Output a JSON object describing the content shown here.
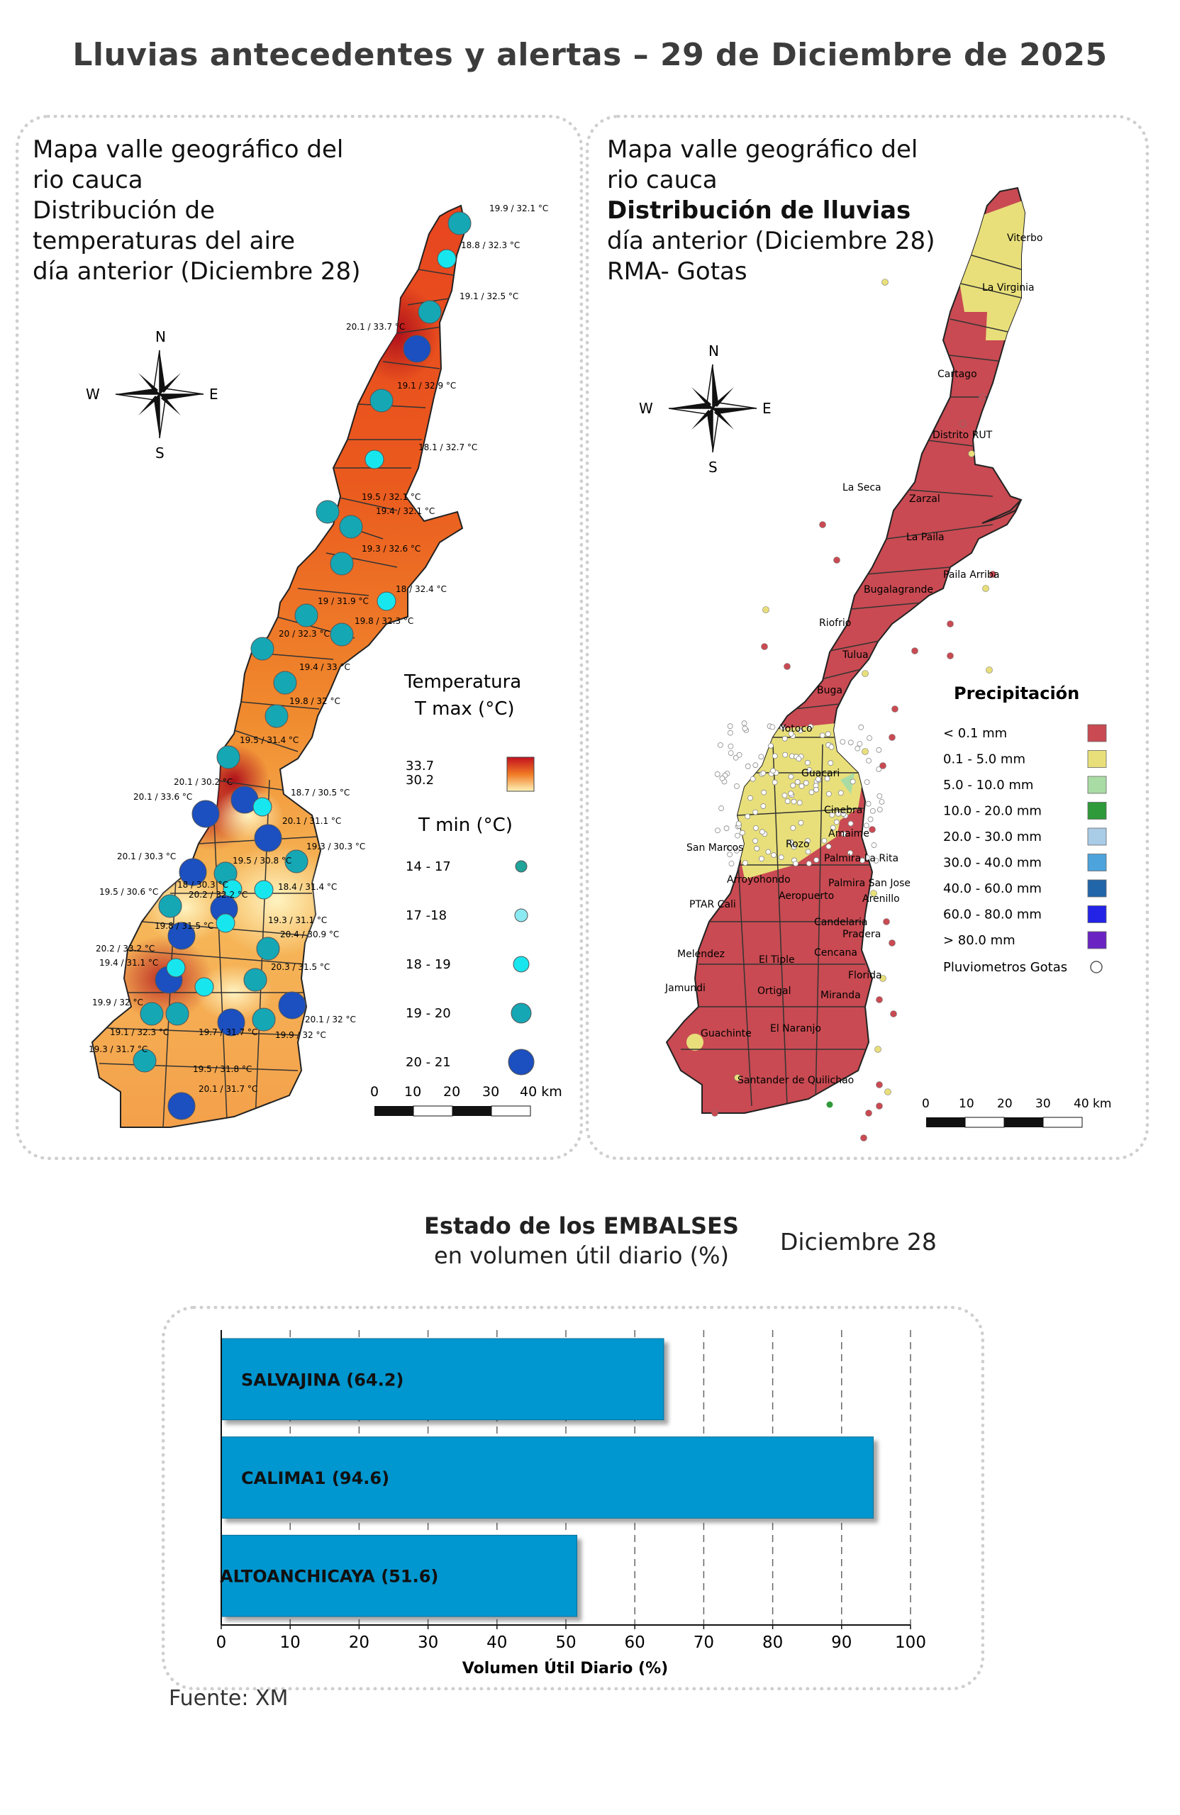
{
  "title": "Lluvias antecedentes y alertas – 29 de Diciembre de 2025",
  "left_panel": {
    "heading_lines": [
      "Mapa valle geográfico del",
      "rio cauca",
      "Distribución de",
      "temperaturas del aire",
      "día anterior (Diciembre 28)"
    ],
    "compass": {
      "n": "N",
      "s": "S",
      "e": "E",
      "w": "W"
    },
    "legend": {
      "title_line1": "Temperatura",
      "title_line2": "T max (°C)",
      "max_value": "33.7",
      "min_value": "30.2",
      "tmin_title": "T min (°C)",
      "tmin_classes": [
        {
          "label": "14 - 17",
          "color": "#1fa39a"
        },
        {
          "label": "17 -18",
          "color": "#8be9f2"
        },
        {
          "label": "18 - 19",
          "color": "#18e6ee"
        },
        {
          "label": "19 - 20",
          "color": "#16a7b5"
        },
        {
          "label": "20 - 21",
          "color": "#1c4fbf"
        }
      ]
    },
    "scale": {
      "ticks": [
        "0",
        "10",
        "20",
        "30",
        "40 km"
      ]
    },
    "station_labels": [
      {
        "text": "19.9 / 32.1 °C"
      },
      {
        "text": "18.8 / 32.3 °C"
      },
      {
        "text": "19.1 / 32.5 °C"
      },
      {
        "text": "20.1 / 33.7 °C"
      },
      {
        "text": "19.1 / 32.9 °C"
      },
      {
        "text": "18.1 / 32.7 °C"
      },
      {
        "text": "19.5 / 32.1 °C"
      },
      {
        "text": "19.4 / 32.1 °C"
      },
      {
        "text": "19.3 / 32.6 °C"
      },
      {
        "text": "18 / 32.4 °C"
      },
      {
        "text": "19 / 31.9 °C"
      },
      {
        "text": "19.8 / 32.3 °C"
      },
      {
        "text": "20 / 32.3 °C"
      },
      {
        "text": "19.4 / 33 °C"
      },
      {
        "text": "19.8 / 32 °C"
      },
      {
        "text": "19.5 / 31.4 °C"
      },
      {
        "text": "20.1 / 30.2 °C"
      },
      {
        "text": "20.1 / 33.6 °C"
      },
      {
        "text": "18.7 / 30.5 °C"
      },
      {
        "text": "20.1 / 31.1 °C"
      },
      {
        "text": "19.3 / 30.3 °C"
      },
      {
        "text": "20.1 / 30.3 °C"
      },
      {
        "text": "19.5 / 30.8 °C"
      },
      {
        "text": "18 / 30.3 °C"
      },
      {
        "text": "18.4 / 31.4 °C"
      },
      {
        "text": "19.5 / 30.6 °C"
      },
      {
        "text": "20.2 / 32.2 °C"
      },
      {
        "text": "19.8 / 31.5 °C"
      },
      {
        "text": "19.3 / 31.1 °C"
      },
      {
        "text": "20.4 / 30.9 °C"
      },
      {
        "text": "20.2 / 33.2 °C"
      },
      {
        "text": "19.4 / 31.1 °C"
      },
      {
        "text": "20.3 / 31.5 °C"
      },
      {
        "text": "19.9 / 32 °C"
      },
      {
        "text": "20.1 / 32 °C"
      },
      {
        "text": "19.1 / 32.3 °C"
      },
      {
        "text": "19.7 / 31.7 °C"
      },
      {
        "text": "19.9 / 32 °C"
      },
      {
        "text": "19.3 / 31.7 °C"
      },
      {
        "text": "19.5 / 31.8 °C"
      },
      {
        "text": "20.1 / 31.7 °C"
      }
    ]
  },
  "right_panel": {
    "heading_line1": "Mapa valle geográfico del",
    "heading_line2": "rio cauca",
    "heading_bold": "Distribución de lluvias",
    "heading_line4": "día anterior (Diciembre 28)",
    "heading_line5": "RMA- Gotas",
    "compass": {
      "n": "N",
      "s": "S",
      "e": "E",
      "w": "W"
    },
    "legend": {
      "title": "Precipitación",
      "classes": [
        {
          "label": "< 0.1 mm",
          "color": "#c94a52"
        },
        {
          "label": "0.1 - 5.0 mm",
          "color": "#e8df7a"
        },
        {
          "label": "5.0 - 10.0 mm",
          "color": "#a9dca4"
        },
        {
          "label": "10.0 - 20.0 mm",
          "color": "#2f9a3a"
        },
        {
          "label": "20.0 - 30.0 mm",
          "color": "#a9cce7"
        },
        {
          "label": "30.0 - 40.0 mm",
          "color": "#4da3dc"
        },
        {
          "label": "40.0 - 60.0 mm",
          "color": "#2266aa"
        },
        {
          "label": "60.0 - 80.0 mm",
          "color": "#2323e8"
        },
        {
          "label": "> 80.0 mm",
          "color": "#6a23c2"
        }
      ],
      "gauges_label": "Pluviometros Gotas"
    },
    "scale": {
      "ticks": [
        "0",
        "10",
        "20",
        "30",
        "40 km"
      ]
    },
    "places": [
      {
        "name": "Viterbo"
      },
      {
        "name": "La Virginia"
      },
      {
        "name": "Cartago"
      },
      {
        "name": "Distrito RUT"
      },
      {
        "name": "La Seca"
      },
      {
        "name": "Zarzal"
      },
      {
        "name": "La Paila"
      },
      {
        "name": "Paila Arriba"
      },
      {
        "name": "Bugalagrande"
      },
      {
        "name": "Riofrio"
      },
      {
        "name": "Tulua"
      },
      {
        "name": "Buga"
      },
      {
        "name": "Yotoco"
      },
      {
        "name": "Guacari"
      },
      {
        "name": "Cinebra"
      },
      {
        "name": "Amaime"
      },
      {
        "name": "San Marcos"
      },
      {
        "name": "Rozo"
      },
      {
        "name": "Palmira La Rita"
      },
      {
        "name": "Arroyohondo"
      },
      {
        "name": "Palmira San Jose"
      },
      {
        "name": "Aeropuerto"
      },
      {
        "name": "Arenillo"
      },
      {
        "name": "PTAR Cali"
      },
      {
        "name": "Candelaria"
      },
      {
        "name": "Pradera"
      },
      {
        "name": "Melendez"
      },
      {
        "name": "El Tiple"
      },
      {
        "name": "Cencana"
      },
      {
        "name": "Florida"
      },
      {
        "name": "Jamundi"
      },
      {
        "name": "Ortigal"
      },
      {
        "name": "Miranda"
      },
      {
        "name": "El Naranjo"
      },
      {
        "name": "Guachinte"
      },
      {
        "name": "Santander de Quilichao"
      }
    ]
  },
  "reservoirs": {
    "title_bold": "Estado de los EMBALSES",
    "title_line2": "en volumen útil diario (%)",
    "date": "Diciembre 28",
    "source": "Fuente: XM",
    "chart_data": {
      "type": "bar",
      "orientation": "horizontal",
      "categories": [
        "SALVAJINA (64.2)",
        "CALIMA1 (94.6)",
        "ALTOANCHICAYA (51.6)"
      ],
      "values": [
        64.2,
        94.6,
        51.6
      ],
      "xlabel": "Volumen Útil Diario (%)",
      "xlim": [
        0,
        100
      ],
      "xticks": [
        "0",
        "10",
        "20",
        "30",
        "40",
        "50",
        "60",
        "70",
        "80",
        "90",
        "100"
      ],
      "bar_color": "#0096cf",
      "grid": "vertical dashed"
    }
  }
}
